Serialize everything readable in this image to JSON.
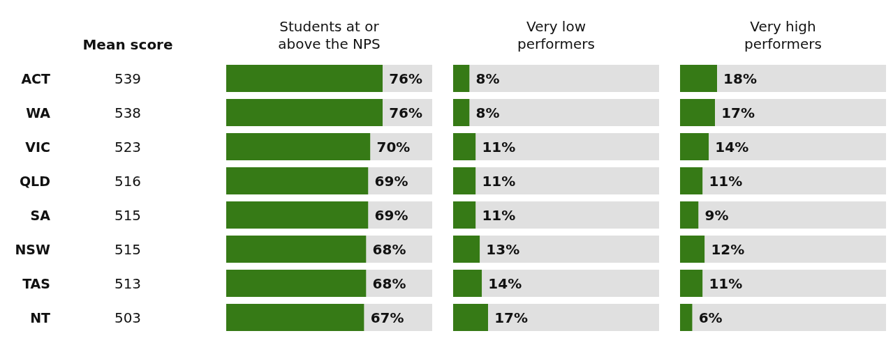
{
  "chart_data": [
    {
      "type": "other",
      "title": "Mean score",
      "categories": [
        "ACT",
        "WA",
        "VIC",
        "QLD",
        "SA",
        "NSW",
        "TAS",
        "NT"
      ],
      "values": [
        539,
        538,
        523,
        516,
        515,
        515,
        513,
        503
      ],
      "data_labels": true
    },
    {
      "type": "bar",
      "title": "Students at or above the NPS",
      "orientation": "horizontal",
      "stacked": true,
      "xlim": [
        0,
        100
      ],
      "tick_labels": false,
      "series": [
        {
          "color": "#367a16",
          "values": [
            76,
            76,
            70,
            69,
            69,
            68,
            68,
            67
          ],
          "value_labels": [
            "76%",
            "76%",
            "70%",
            "69%",
            "69%",
            "68%",
            "68%",
            "67%"
          ]
        },
        {
          "color": "#e0e0e0",
          "values": [
            24,
            24,
            30,
            31,
            31,
            32,
            32,
            33
          ]
        }
      ]
    },
    {
      "type": "bar",
      "title": "Very low performers",
      "orientation": "horizontal",
      "stacked": true,
      "xlim": [
        0,
        100
      ],
      "tick_labels": false,
      "series": [
        {
          "color": "#367a16",
          "values": [
            8,
            8,
            11,
            11,
            11,
            13,
            14,
            17
          ],
          "value_labels": [
            "8%",
            "8%",
            "11%",
            "11%",
            "11%",
            "13%",
            "14%",
            "17%"
          ]
        },
        {
          "color": "#e0e0e0",
          "values": [
            92,
            92,
            89,
            89,
            89,
            87,
            86,
            83
          ]
        }
      ]
    },
    {
      "type": "bar",
      "title": "Very high performers",
      "orientation": "horizontal",
      "stacked": true,
      "xlim": [
        0,
        100
      ],
      "tick_labels": false,
      "series": [
        {
          "color": "#367a16",
          "values": [
            18,
            17,
            14,
            11,
            9,
            12,
            11,
            6
          ],
          "value_labels": [
            "18%",
            "17%",
            "14%",
            "11%",
            "9%",
            "12%",
            "11%",
            "6%"
          ]
        },
        {
          "color": "#e0e0e0",
          "values": [
            82,
            83,
            86,
            89,
            91,
            88,
            89,
            94
          ]
        }
      ]
    }
  ]
}
